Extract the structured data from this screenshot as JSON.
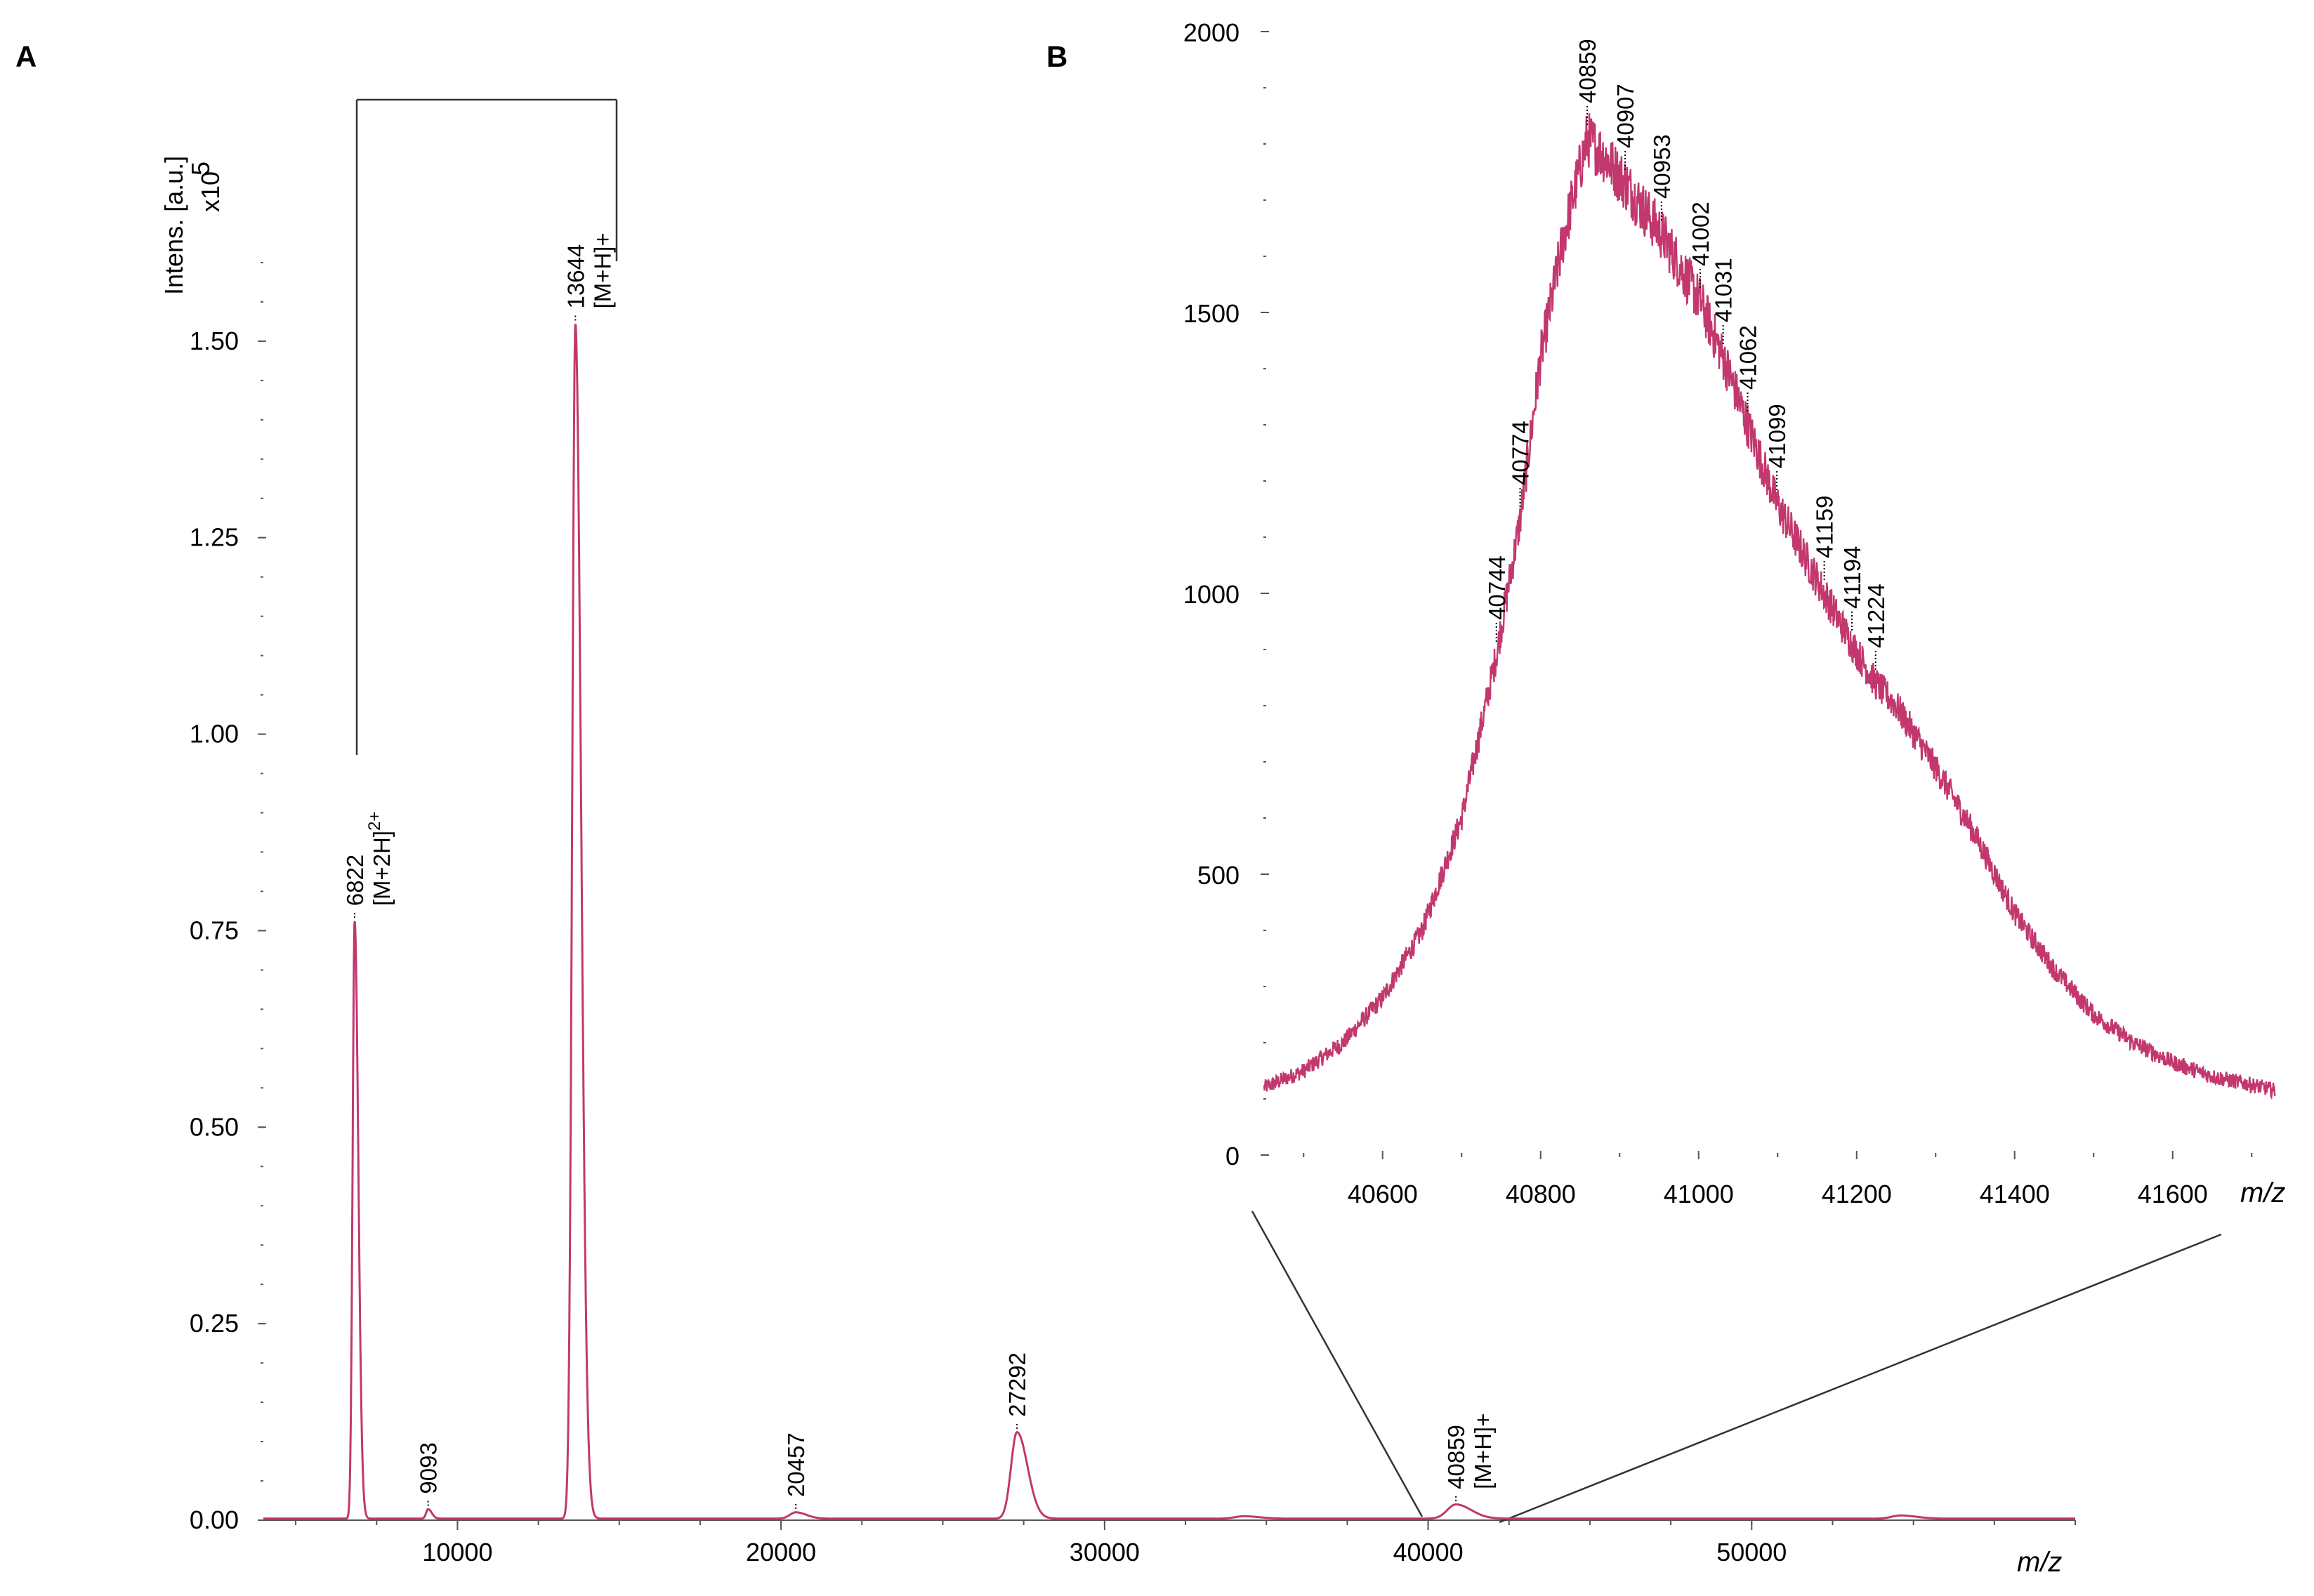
{
  "figure": {
    "trace_color": "#c2386e",
    "panel_a": {
      "letter": "A",
      "ylabel": "Intens. [a.u.]",
      "y_multiplier": "x10",
      "y_multiplier_exp": "5",
      "xlabel": "m/z"
    },
    "panel_b": {
      "letter": "B",
      "xlabel": "m/z"
    }
  },
  "chart_data": [
    {
      "type": "line",
      "panel": "A",
      "ylabel": "Intens. [a.u.]",
      "xlabel": "m/z",
      "y_multiplier": "x10^5",
      "xlim": [
        4000,
        60000
      ],
      "ylim": [
        0,
        1.7
      ],
      "x_ticks": [
        "10000",
        "20000",
        "30000",
        "40000",
        "50000"
      ],
      "y_ticks": [
        "0.00",
        "0.25",
        "0.50",
        "0.75",
        "1.00",
        "1.25",
        "1.50"
      ],
      "series": [
        {
          "peaks": [
            {
              "mz": 6822,
              "intensity": 0.76,
              "label": "6822",
              "ion": "[M+2H]",
              "ion_sup": "2+"
            },
            {
              "mz": 9093,
              "intensity": 0.012,
              "label": "9093"
            },
            {
              "mz": 13644,
              "intensity": 1.52,
              "label": "13644",
              "ion": "[M+H]+"
            },
            {
              "mz": 20457,
              "intensity": 0.008,
              "label": "20457"
            },
            {
              "mz": 27292,
              "intensity": 0.11,
              "label": "27292"
            },
            {
              "mz": 34300,
              "intensity": 0.003
            },
            {
              "mz": 40859,
              "intensity": 0.018,
              "label": "40859",
              "ion": "[M+H]+"
            },
            {
              "mz": 54600,
              "intensity": 0.004
            }
          ]
        }
      ],
      "annotations": [
        "bracket connecting 6822 [M+2H]2+ and 13644 [M+H]+",
        "zoom from 40000-42000 to panel B"
      ]
    },
    {
      "type": "line",
      "panel": "B",
      "xlabel": "m/z",
      "xlim": [
        40450,
        41730
      ],
      "ylim": [
        0,
        2000
      ],
      "x_ticks": [
        "40600",
        "40800",
        "41000",
        "41200",
        "41400",
        "41600"
      ],
      "y_ticks": [
        "0",
        "500",
        "1000",
        "1500",
        "2000"
      ],
      "series": [
        {
          "envelope": [
            [
              40450,
              120
            ],
            [
              40500,
              150
            ],
            [
              40550,
              200
            ],
            [
              40600,
              280
            ],
            [
              40650,
              400
            ],
            [
              40700,
              600
            ],
            [
              40744,
              890
            ],
            [
              40774,
              1130
            ],
            [
              40800,
              1420
            ],
            [
              40830,
              1640
            ],
            [
              40859,
              1810
            ],
            [
              40880,
              1780
            ],
            [
              40907,
              1730
            ],
            [
              40953,
              1640
            ],
            [
              41002,
              1520
            ],
            [
              41031,
              1420
            ],
            [
              41062,
              1300
            ],
            [
              41099,
              1160
            ],
            [
              41159,
              1000
            ],
            [
              41194,
              910
            ],
            [
              41224,
              840
            ],
            [
              41250,
              800
            ],
            [
              41300,
              690
            ],
            [
              41350,
              570
            ],
            [
              41400,
              430
            ],
            [
              41450,
              330
            ],
            [
              41500,
              250
            ],
            [
              41550,
              200
            ],
            [
              41600,
              165
            ],
            [
              41650,
              140
            ],
            [
              41700,
              125
            ],
            [
              41730,
              115
            ]
          ],
          "peak_labels": [
            {
              "mz": 40744,
              "label": "40744"
            },
            {
              "mz": 40774,
              "label": "40774"
            },
            {
              "mz": 40859,
              "label": "40859"
            },
            {
              "mz": 40907,
              "label": "40907"
            },
            {
              "mz": 40953,
              "label": "40953"
            },
            {
              "mz": 41002,
              "label": "41002"
            },
            {
              "mz": 41031,
              "label": "41031"
            },
            {
              "mz": 41062,
              "label": "41062"
            },
            {
              "mz": 41099,
              "label": "41099"
            },
            {
              "mz": 41159,
              "label": "41159"
            },
            {
              "mz": 41194,
              "label": "41194"
            },
            {
              "mz": 41224,
              "label": "41224"
            }
          ]
        }
      ]
    }
  ]
}
